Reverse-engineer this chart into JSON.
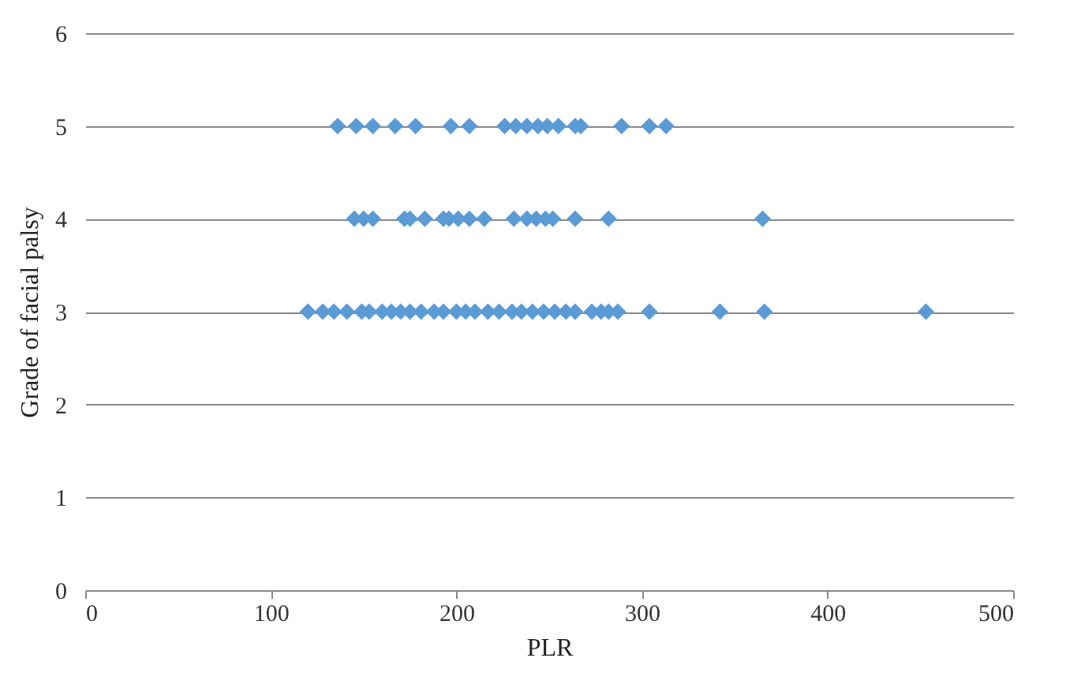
{
  "chart_data": {
    "type": "scatter",
    "xlabel": "PLR",
    "ylabel": "Grade of facial palsy",
    "xlim": [
      0,
      500
    ],
    "xticks": [
      0,
      100,
      200,
      300,
      400,
      500
    ],
    "ylim": [
      0,
      6
    ],
    "yticks": [
      0,
      1,
      2,
      3,
      4,
      5,
      6
    ],
    "grid": "y",
    "marker": "diamond",
    "series": [
      {
        "color": "#5b9bd5",
        "x": [
          136,
          146,
          155,
          167,
          178,
          197,
          207,
          226,
          232,
          238,
          244,
          249,
          255,
          264,
          267,
          289,
          304,
          313,
          145,
          150,
          155,
          172,
          175,
          183,
          193,
          196,
          201,
          207,
          215,
          231,
          238,
          243,
          248,
          252,
          264,
          282,
          365,
          120,
          128,
          134,
          141,
          149,
          153,
          160,
          165,
          170,
          175,
          181,
          188,
          193,
          200,
          205,
          210,
          217,
          223,
          230,
          235,
          241,
          247,
          253,
          259,
          264,
          273,
          278,
          282,
          287,
          304,
          342,
          366,
          453
        ],
        "values": [
          5,
          5,
          5,
          5,
          5,
          5,
          5,
          5,
          5,
          5,
          5,
          5,
          5,
          5,
          5,
          5,
          5,
          5,
          4,
          4,
          4,
          4,
          4,
          4,
          4,
          4,
          4,
          4,
          4,
          4,
          4,
          4,
          4,
          4,
          4,
          4,
          4,
          3,
          3,
          3,
          3,
          3,
          3,
          3,
          3,
          3,
          3,
          3,
          3,
          3,
          3,
          3,
          3,
          3,
          3,
          3,
          3,
          3,
          3,
          3,
          3,
          3,
          3,
          3,
          3,
          3,
          3,
          3,
          3,
          3
        ]
      }
    ]
  }
}
